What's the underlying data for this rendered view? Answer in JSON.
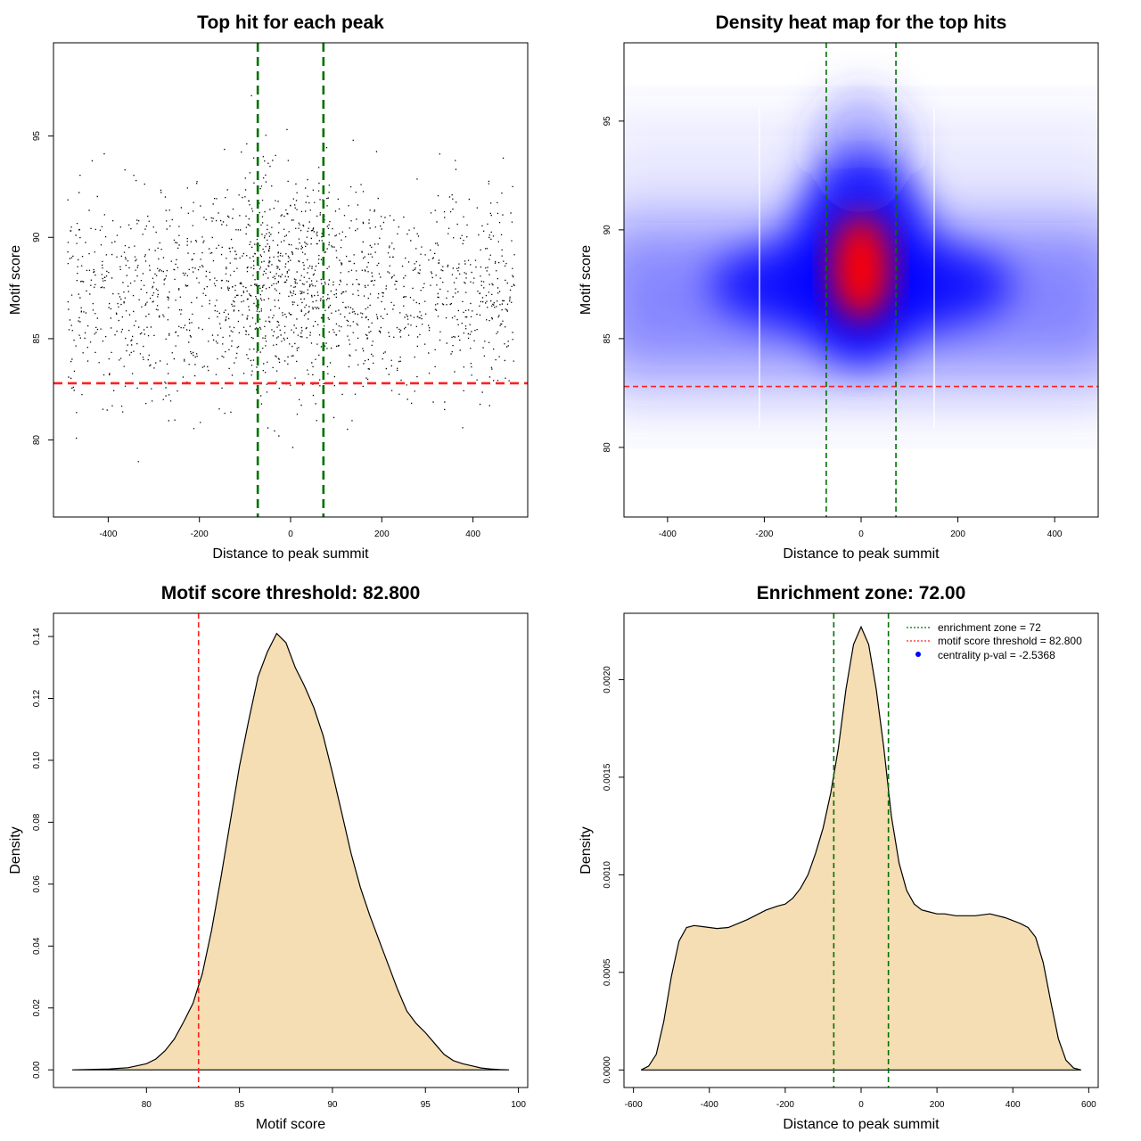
{
  "chart_data": [
    {
      "type": "scatter",
      "title": "Top hit for each peak",
      "xlabel": "Distance to peak summit",
      "ylabel": "Motif score",
      "xlim": [
        -520,
        520
      ],
      "ylim": [
        76.2,
        99.6
      ],
      "xticks": [
        -400,
        -200,
        0,
        200,
        400
      ],
      "yticks": [
        80,
        85,
        90,
        95
      ],
      "threshold": 82.8,
      "zone": [
        -72,
        72
      ],
      "threshold_color": "#ff2020",
      "zone_color": "#007000",
      "point_color": "#000000"
    },
    {
      "type": "heatmap",
      "title": "Density heat map for the top hits",
      "xlabel": "Distance to peak summit",
      "ylabel": "Motif score",
      "xlim": [
        -490,
        490
      ],
      "ylim": [
        76.8,
        98.6
      ],
      "xticks": [
        -400,
        -200,
        0,
        200,
        400
      ],
      "yticks": [
        80,
        85,
        90,
        95
      ],
      "threshold": 82.8,
      "zone": [
        -72,
        72
      ],
      "colors": [
        "#ffffff",
        "#0000ff",
        "#ff0000"
      ]
    },
    {
      "type": "area",
      "title": "Motif score threshold: 82.800",
      "xlabel": "Motif score",
      "ylabel": "Density",
      "xlim": [
        75,
        100.5
      ],
      "ylim": [
        -0.0057,
        0.1475
      ],
      "xticks": [
        80,
        85,
        90,
        95,
        100
      ],
      "yticks": [
        0.0,
        0.02,
        0.04,
        0.06,
        0.08,
        0.1,
        0.12,
        0.14
      ],
      "ytick_labels": [
        "0.00",
        "0.02",
        "0.04",
        "0.06",
        "0.08",
        "0.10",
        "0.12",
        "0.14"
      ],
      "threshold": 82.8,
      "fill_color": "#f5deb3",
      "x": [
        76,
        78,
        79,
        80,
        80.5,
        81,
        81.5,
        82,
        82.5,
        83,
        83.5,
        84,
        84.5,
        85,
        85.5,
        86,
        86.5,
        87,
        87.5,
        88,
        88.5,
        89,
        89.5,
        90,
        90.5,
        91,
        91.5,
        92,
        92.5,
        93,
        93.5,
        94,
        94.5,
        95,
        95.5,
        96,
        96.5,
        97,
        97.5,
        98,
        98.5,
        99,
        99.5
      ],
      "y": [
        0.0,
        0.0003,
        0.0007,
        0.002,
        0.0035,
        0.0062,
        0.01,
        0.0155,
        0.0215,
        0.031,
        0.045,
        0.062,
        0.08,
        0.098,
        0.113,
        0.127,
        0.135,
        0.141,
        0.138,
        0.13,
        0.124,
        0.117,
        0.108,
        0.096,
        0.083,
        0.07,
        0.059,
        0.05,
        0.042,
        0.034,
        0.026,
        0.019,
        0.015,
        0.012,
        0.0085,
        0.005,
        0.003,
        0.002,
        0.0013,
        0.0006,
        0.0003,
        0.0001,
        0.0
      ]
    },
    {
      "type": "area",
      "title": "Enrichment zone: 72.00",
      "xlabel": "Distance to peak summit",
      "ylabel": "Density",
      "xlim": [
        -625,
        625
      ],
      "ylim": [
        -9e-05,
        0.00234
      ],
      "xticks": [
        -600,
        -400,
        -200,
        0,
        200,
        400,
        600
      ],
      "yticks": [
        0.0,
        0.0005,
        0.001,
        0.0015,
        0.002
      ],
      "ytick_labels": [
        "0.0000",
        "0.0005",
        "0.0010",
        "0.0015",
        "0.0020"
      ],
      "zone": [
        -72,
        72
      ],
      "fill_color": "#f5deb3",
      "x": [
        -580,
        -560,
        -540,
        -520,
        -500,
        -480,
        -460,
        -440,
        -420,
        -400,
        -380,
        -350,
        -300,
        -250,
        -220,
        -200,
        -180,
        -160,
        -140,
        -120,
        -100,
        -80,
        -60,
        -40,
        -20,
        0,
        20,
        40,
        60,
        80,
        100,
        120,
        140,
        160,
        180,
        200,
        220,
        250,
        300,
        340,
        380,
        420,
        440,
        460,
        480,
        500,
        520,
        540,
        560,
        580
      ],
      "y": [
        0.0,
        2e-05,
        8e-05,
        0.00025,
        0.00048,
        0.00066,
        0.00073,
        0.00074,
        0.000735,
        0.00073,
        0.000725,
        0.00073,
        0.00077,
        0.00082,
        0.00084,
        0.00085,
        0.00088,
        0.00093,
        0.001,
        0.00111,
        0.00124,
        0.00142,
        0.00165,
        0.00195,
        0.00218,
        0.00227,
        0.00218,
        0.00195,
        0.00165,
        0.0013,
        0.00106,
        0.00092,
        0.00085,
        0.00082,
        0.00081,
        0.0008,
        0.0008,
        0.00079,
        0.00079,
        0.0008,
        0.00078,
        0.00075,
        0.00073,
        0.00068,
        0.00055,
        0.00035,
        0.00016,
        5e-05,
        1e-05,
        0.0
      ],
      "legend": [
        {
          "label": "enrichment zone = 72",
          "color": "#007000",
          "style": "dotted"
        },
        {
          "label": "motif score threshold = 82.800",
          "color": "#ff2020",
          "style": "dotted"
        },
        {
          "label": "centrality p-val = -2.5368",
          "color": "#0000ff",
          "style": "point"
        }
      ]
    }
  ]
}
